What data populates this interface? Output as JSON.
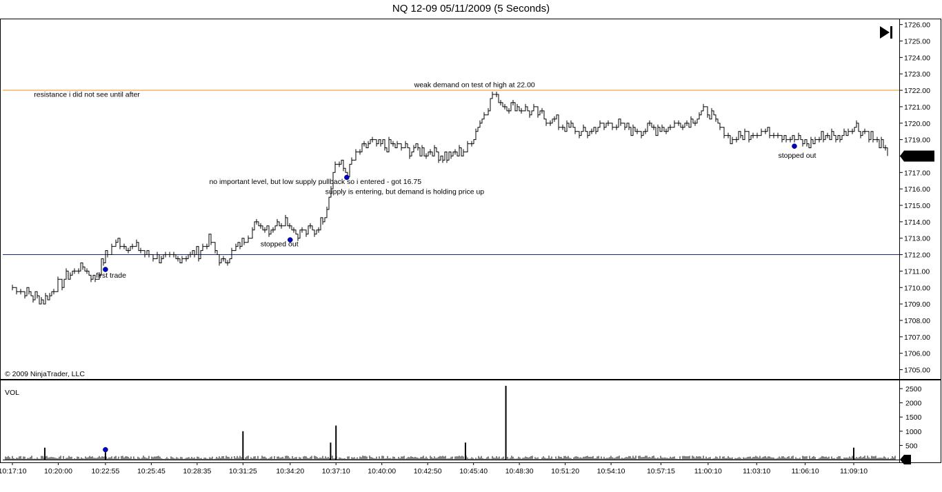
{
  "title": "NQ 12-09  05/11/2009 (5 Seconds)",
  "copyright": "© 2009 NinjaTrader, LLC",
  "vol_label": "VOL",
  "colors": {
    "price": "#000000",
    "resistance_line": "#e8900f",
    "support_line": "#1a237e",
    "entry_marker": "#0000cc",
    "price_marker_bg": "#000000",
    "price_marker_text": "#ffffff"
  },
  "chart_data": [
    {
      "type": "line",
      "name": "price",
      "ylim": [
        1704.5,
        1726.2
      ],
      "y_ticks": [
        "1705.00",
        "1706.00",
        "1707.00",
        "1708.00",
        "1709.00",
        "1710.00",
        "1711.00",
        "1712.00",
        "1713.00",
        "1714.00",
        "1715.00",
        "1716.00",
        "1717.00",
        "1718.00",
        "1719.00",
        "1720.00",
        "1721.00",
        "1722.00",
        "1723.00",
        "1724.00",
        "1725.00",
        "1726.00"
      ],
      "x_ticks": [
        "10:17:10",
        "10:20:00",
        "10:22:55",
        "10:25:45",
        "10:28:35",
        "10:31:25",
        "10:34:20",
        "10:37:10",
        "10:40:00",
        "10:42:50",
        "10:45:40",
        "10:48:30",
        "10:51:20",
        "10:54:10",
        "10:57:15",
        "11:00:10",
        "11:03:10",
        "11:06:10",
        "11:09:10"
      ],
      "x": [
        "10:17:10",
        "10:18:30",
        "10:19:10",
        "10:20:00",
        "10:21:30",
        "10:22:20",
        "10:22:55",
        "10:23:40",
        "10:24:30",
        "10:25:45",
        "10:27:00",
        "10:28:35",
        "10:29:20",
        "10:30:10",
        "10:31:25",
        "10:32:20",
        "10:33:00",
        "10:34:00",
        "10:34:40",
        "10:35:50",
        "10:36:30",
        "10:37:10",
        "10:37:50",
        "10:38:30",
        "10:39:20",
        "10:40:00",
        "10:41:00",
        "10:42:00",
        "10:42:50",
        "10:44:10",
        "10:45:10",
        "10:45:40",
        "10:46:20",
        "10:46:50",
        "10:47:40",
        "10:48:30",
        "10:49:40",
        "10:51:20",
        "10:52:30",
        "10:54:10",
        "10:55:30",
        "10:57:15",
        "10:58:40",
        "11:00:10",
        "11:00:40",
        "11:01:40",
        "11:03:10",
        "11:04:30",
        "11:06:10",
        "11:07:20",
        "11:08:20",
        "11:09:10",
        "11:10:00",
        "11:10:40",
        "11:11:20"
      ],
      "values": [
        1710.0,
        1709.5,
        1709.2,
        1710.2,
        1711.3,
        1710.5,
        1712.0,
        1712.8,
        1712.5,
        1712.0,
        1711.7,
        1712.1,
        1712.9,
        1711.5,
        1712.8,
        1713.9,
        1713.6,
        1714.2,
        1713.4,
        1713.5,
        1714.5,
        1717.8,
        1717.0,
        1718.2,
        1718.8,
        1718.7,
        1718.5,
        1718.4,
        1718.3,
        1718.0,
        1718.3,
        1719.3,
        1720.6,
        1721.7,
        1721.1,
        1720.9,
        1720.6,
        1719.8,
        1719.4,
        1720.0,
        1719.6,
        1719.7,
        1720.0,
        1720.8,
        1719.9,
        1719.0,
        1719.5,
        1719.4,
        1718.7,
        1719.2,
        1719.2,
        1719.9,
        1719.4,
        1718.8,
        1718.0
      ],
      "last_price": "1718.00",
      "horizontal_lines": [
        {
          "price": 1722.0,
          "color": "orange"
        },
        {
          "price": 1712.0,
          "color": "navy"
        }
      ],
      "markers": [
        {
          "x": "10:22:55",
          "price": 1711.1
        },
        {
          "x": "10:34:20",
          "price": 1712.9
        },
        {
          "x": "10:37:50",
          "price": 1716.7
        },
        {
          "x": "11:05:30",
          "price": 1718.6
        }
      ],
      "annotations": [
        {
          "text": "resistance i did not see until after",
          "x": "10:18:30",
          "price": 1721.6
        },
        {
          "text": "weak demand on test of high at 22.00",
          "x": "10:42:00",
          "price": 1722.2
        },
        {
          "text": "no important level, but low supply pullback so i entered - got 16.75",
          "x": "10:29:20",
          "price": 1716.3
        },
        {
          "text": "supply is entering, but demand is holding price up",
          "x": "10:36:30",
          "price": 1715.7
        },
        {
          "text": "stopped out",
          "x": "10:32:30",
          "price": 1712.5
        },
        {
          "text": "first trade",
          "x": "10:22:20",
          "price": 1710.6
        },
        {
          "text": "stopped out",
          "x": "11:04:30",
          "price": 1717.9
        }
      ]
    },
    {
      "type": "bar",
      "name": "VOL",
      "ylim": [
        0,
        2650
      ],
      "y_ticks": [
        "500",
        "1000",
        "1500",
        "2000",
        "2500"
      ],
      "last_value": "1",
      "spikes": [
        {
          "x": "10:19:10",
          "value": 420
        },
        {
          "x": "10:22:55",
          "value": 260
        },
        {
          "x": "10:31:25",
          "value": 1000
        },
        {
          "x": "10:36:50",
          "value": 600
        },
        {
          "x": "10:37:10",
          "value": 1200
        },
        {
          "x": "10:45:10",
          "value": 600
        },
        {
          "x": "10:47:40",
          "value": 2600
        },
        {
          "x": "11:09:10",
          "value": 420
        }
      ],
      "markers": [
        {
          "x": "10:22:55",
          "value": 350
        }
      ]
    }
  ]
}
